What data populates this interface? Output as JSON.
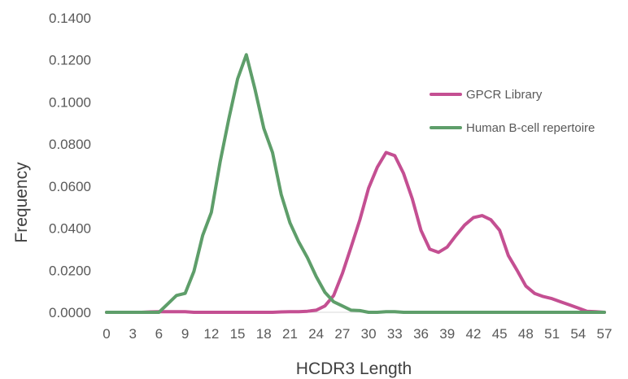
{
  "chart_data": {
    "type": "line",
    "title": "",
    "xlabel": "HCDR3 Length",
    "ylabel": "Frequency",
    "xlim": [
      0,
      57
    ],
    "ylim": [
      0,
      0.14
    ],
    "x_ticks": [
      "0",
      "3",
      "6",
      "9",
      "12",
      "15",
      "18",
      "21",
      "24",
      "27",
      "30",
      "33",
      "36",
      "39",
      "42",
      "45",
      "48",
      "51",
      "54",
      "57"
    ],
    "y_ticks": [
      "0.0000",
      "0.0200",
      "0.0400",
      "0.0600",
      "0.0800",
      "0.1000",
      "0.1200",
      "0.1400"
    ],
    "grid": false,
    "legend_position": "right",
    "x": [
      0,
      1,
      2,
      3,
      4,
      5,
      6,
      7,
      8,
      9,
      10,
      11,
      12,
      13,
      14,
      15,
      16,
      17,
      18,
      19,
      20,
      21,
      22,
      23,
      24,
      25,
      26,
      27,
      28,
      29,
      30,
      31,
      32,
      33,
      34,
      35,
      36,
      37,
      38,
      39,
      40,
      41,
      42,
      43,
      44,
      45,
      46,
      47,
      48,
      49,
      50,
      51,
      52,
      53,
      54,
      55,
      56,
      57
    ],
    "series": [
      {
        "name": "GPCR Library",
        "color": "#c44f92",
        "values": [
          0,
          0,
          0,
          0,
          0,
          0.0002,
          0.0003,
          0.0003,
          0.0003,
          0.0003,
          0,
          0,
          0,
          0,
          0,
          0,
          0,
          0,
          0,
          0,
          0.0002,
          0.0003,
          0.0003,
          0.0005,
          0.001,
          0.003,
          0.008,
          0.0185,
          0.031,
          0.044,
          0.059,
          0.069,
          0.076,
          0.0745,
          0.066,
          0.054,
          0.039,
          0.03,
          0.0285,
          0.031,
          0.0365,
          0.0415,
          0.045,
          0.046,
          0.044,
          0.039,
          0.027,
          0.02,
          0.0125,
          0.009,
          0.0075,
          0.0065,
          0.005,
          0.0035,
          0.002,
          0.0005,
          0.0003,
          0
        ]
      },
      {
        "name": "Human B-cell repertoire",
        "color": "#5e9e6a",
        "values": [
          0,
          0,
          0,
          0,
          0,
          0,
          0,
          0.004,
          0.008,
          0.009,
          0.0195,
          0.0365,
          0.0475,
          0.0715,
          0.092,
          0.111,
          0.1225,
          0.106,
          0.0875,
          0.076,
          0.056,
          0.0425,
          0.0335,
          0.026,
          0.017,
          0.0095,
          0.005,
          0.003,
          0.001,
          0.0008,
          0,
          0,
          0.0003,
          0.0003,
          0,
          0,
          0,
          0,
          0,
          0,
          0,
          0,
          0,
          0,
          0,
          0,
          0,
          0,
          0,
          0,
          0,
          0,
          0,
          0,
          0,
          0,
          0,
          0
        ]
      }
    ]
  }
}
